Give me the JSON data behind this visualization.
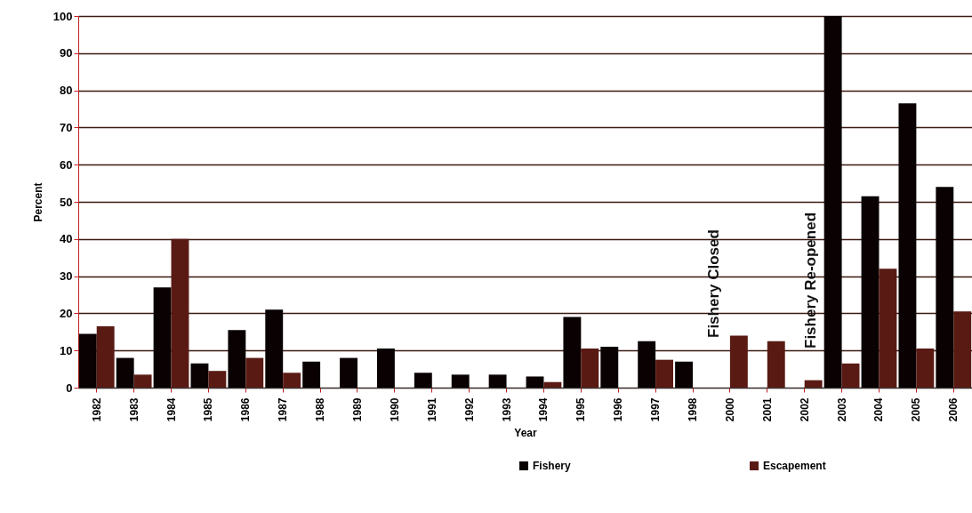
{
  "chart_data": {
    "type": "bar",
    "xlabel": "Year",
    "ylabel": "Percent",
    "categories": [
      "1982",
      "1983",
      "1984",
      "1985",
      "1986",
      "1987",
      "1988",
      "1989",
      "1990",
      "1991",
      "1992",
      "1993",
      "1994",
      "1995",
      "1996",
      "1997",
      "1998",
      "2000",
      "2001",
      "2002",
      "2003",
      "2004",
      "2005",
      "2006"
    ],
    "series": [
      {
        "name": "Fishery",
        "color": "#0a0202",
        "values": [
          14.5,
          8,
          27,
          6.5,
          15.5,
          21,
          7,
          8,
          10.5,
          4,
          3.5,
          3.5,
          3,
          19,
          11,
          12.5,
          7,
          null,
          null,
          null,
          100,
          51.5,
          76.5,
          54
        ]
      },
      {
        "name": "Escapement",
        "color": "#5a1a14",
        "values": [
          16.5,
          3.5,
          40,
          4.5,
          8,
          4,
          null,
          null,
          null,
          null,
          null,
          null,
          1.5,
          10.5,
          null,
          7.5,
          null,
          14,
          12.5,
          2,
          6.5,
          32,
          10.5,
          20.5
        ]
      }
    ],
    "ylim": [
      0,
      100
    ],
    "yticks": [
      0,
      10,
      20,
      30,
      40,
      50,
      60,
      70,
      80,
      90,
      100
    ],
    "grid": "y",
    "legend": "bottom",
    "annotations": [
      "Fishery Closed",
      "Fishery Re-opened"
    ]
  }
}
